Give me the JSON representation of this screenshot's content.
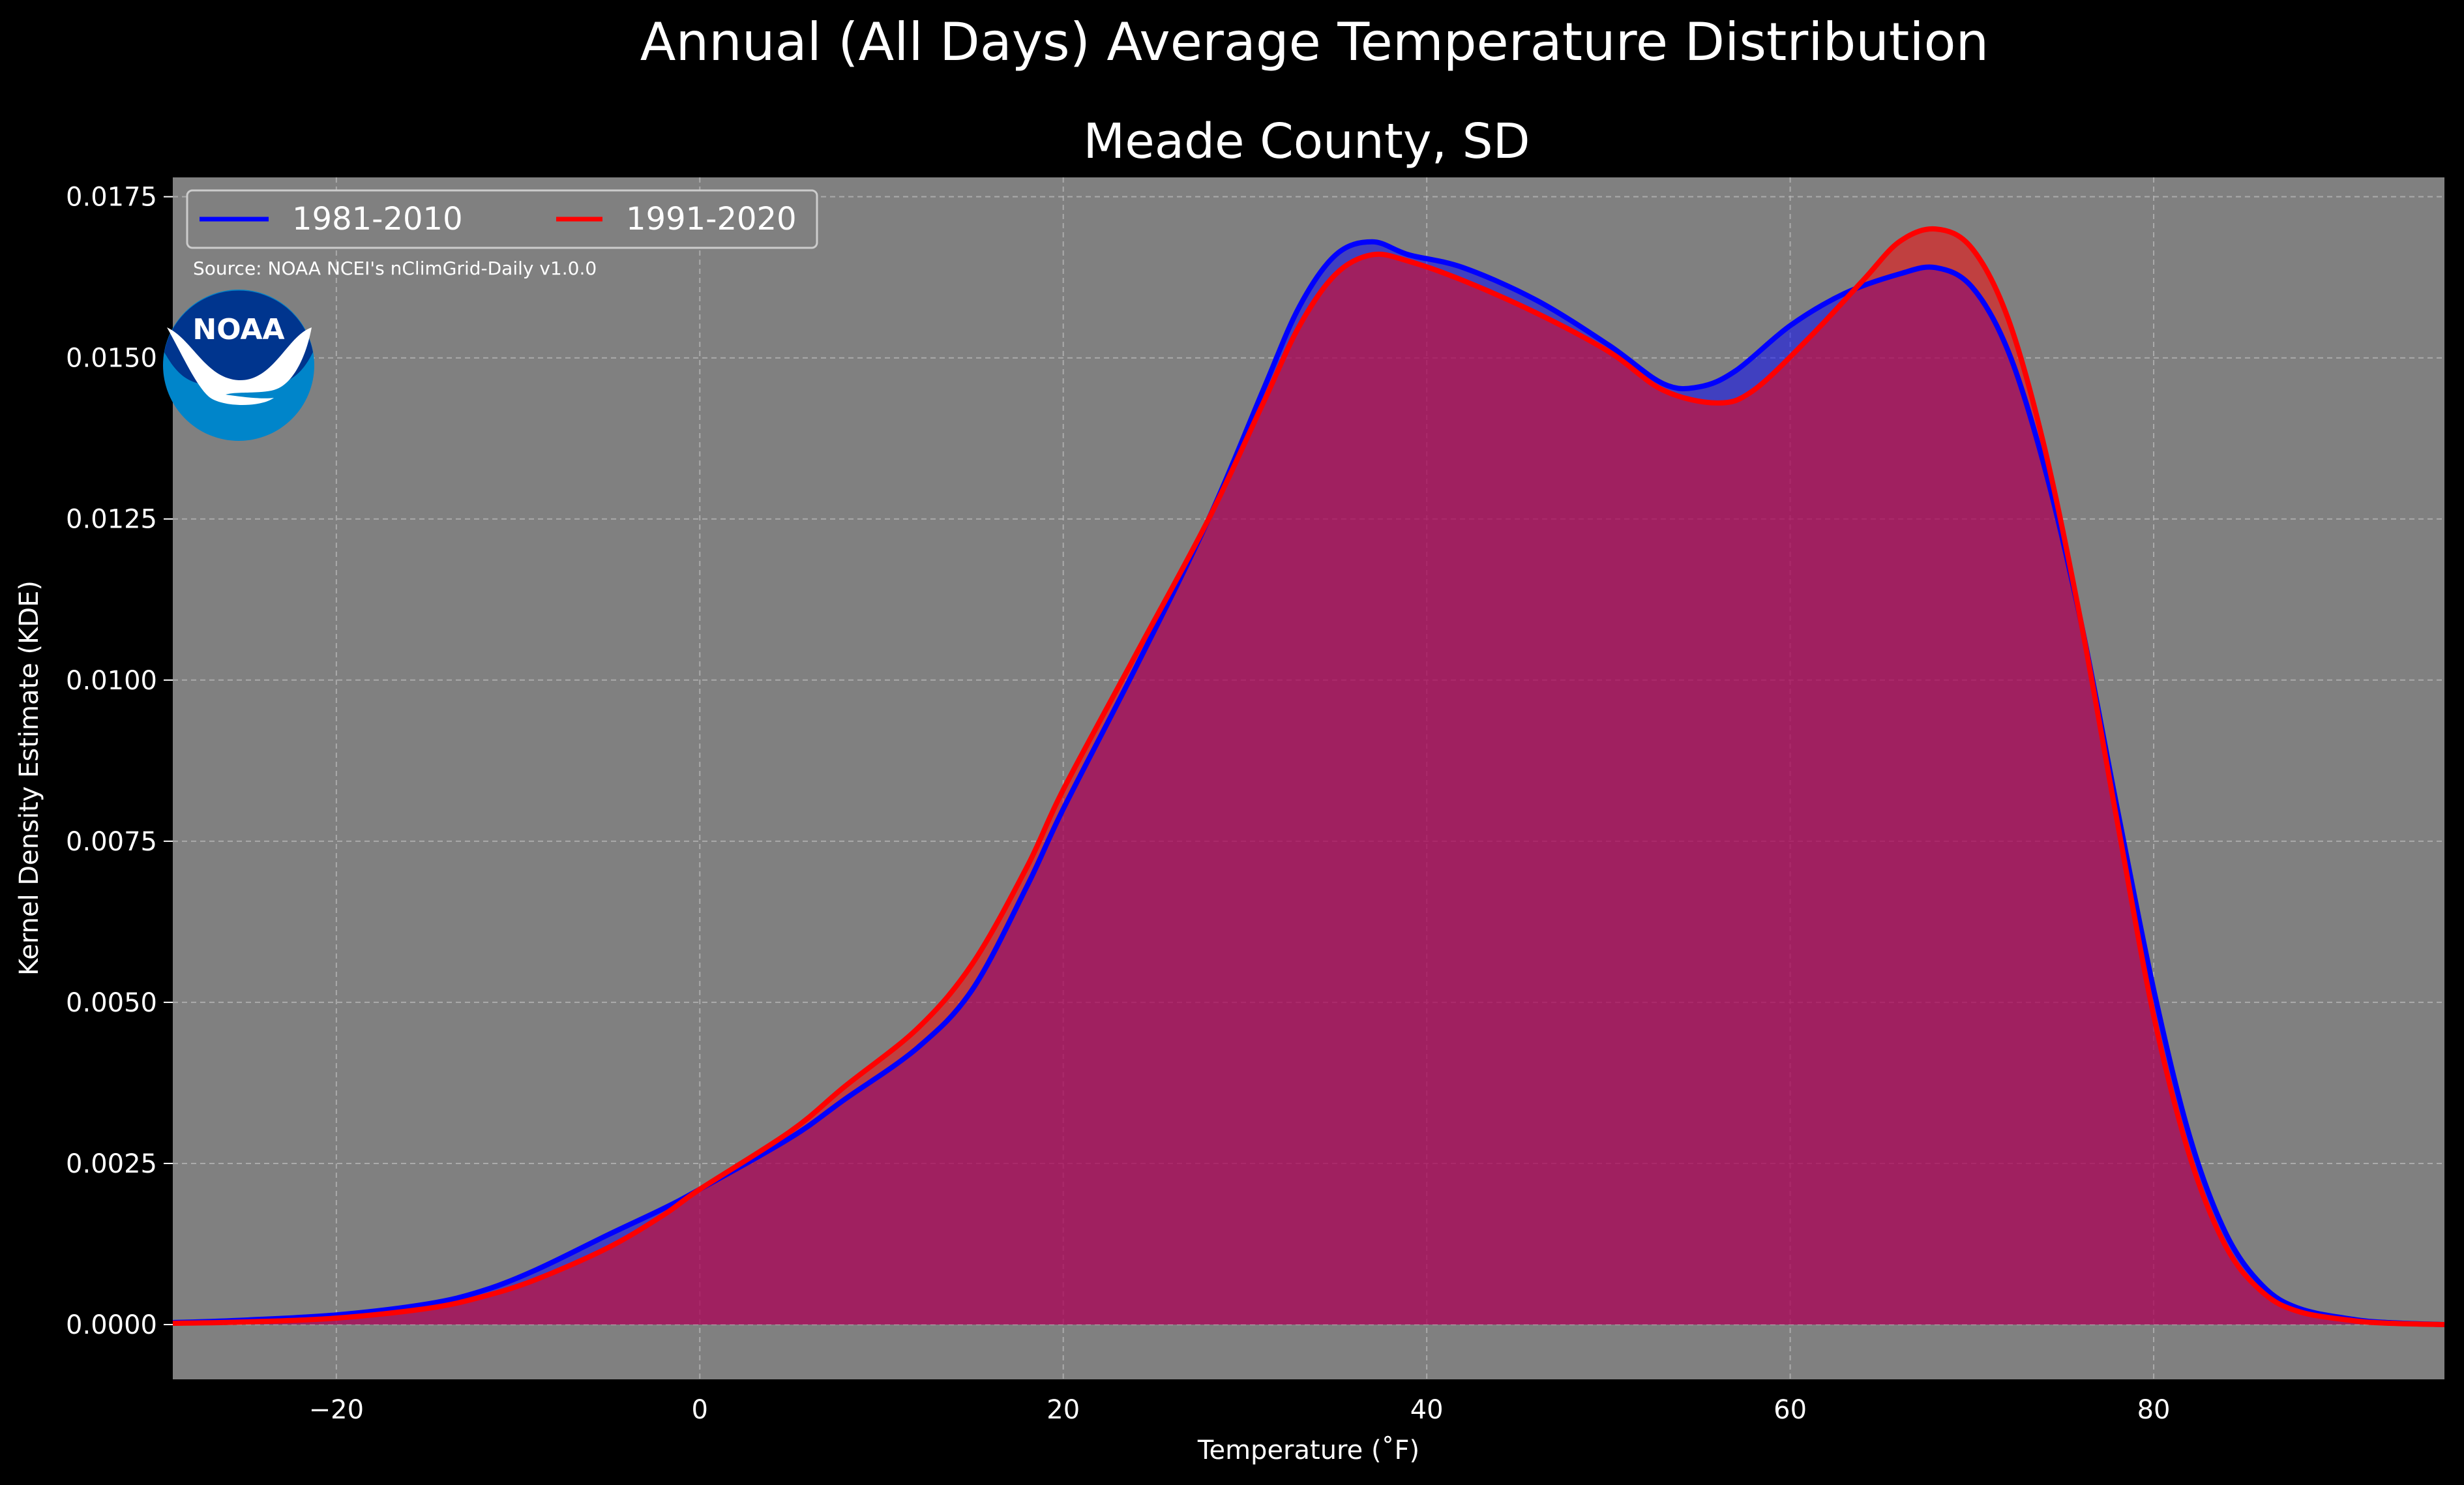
{
  "figure": {
    "suptitle": "Annual (All Days) Average Temperature Distribution",
    "subtitle": "Meade County, SD",
    "source": "Source: NOAA NCEI's nClimGrid-Daily v1.0.0",
    "logo_text": "NOAA",
    "background": "#000000",
    "plot_background": "#808080"
  },
  "chart_data": {
    "type": "area",
    "title": "Meade County, SD",
    "xlabel": "Temperature ($^\\circ$F)",
    "ylabel": "Kernel Density Estimate (KDE)",
    "xlabel_display": "Temperature (˚F)",
    "xlim": [
      -29,
      96
    ],
    "ylim": [
      -0.00085,
      0.0178
    ],
    "xticks": [
      -20,
      0,
      20,
      40,
      60,
      80
    ],
    "xtick_labels": [
      "−20",
      "0",
      "20",
      "40",
      "60",
      "80"
    ],
    "yticks": [
      0,
      0.0025,
      0.005,
      0.0075,
      0.01,
      0.0125,
      0.015,
      0.0175
    ],
    "ytick_labels": [
      "0.0000",
      "0.0025",
      "0.0050",
      "0.0075",
      "0.0100",
      "0.0125",
      "0.0150",
      "0.0175"
    ],
    "grid": true,
    "legend_position": "top-left",
    "series": [
      {
        "name": "1981-2010",
        "color": "#0000ff",
        "points": [
          [
            -29,
            3e-05
          ],
          [
            -25,
            7e-05
          ],
          [
            -20,
            0.00015
          ],
          [
            -15,
            0.00032
          ],
          [
            -12,
            0.00052
          ],
          [
            -9,
            0.00085
          ],
          [
            -5,
            0.0014
          ],
          [
            -2,
            0.0018
          ],
          [
            0,
            0.0021
          ],
          [
            5,
            0.0029
          ],
          [
            8,
            0.0035
          ],
          [
            12,
            0.0043
          ],
          [
            15,
            0.0052
          ],
          [
            18,
            0.0068
          ],
          [
            20,
            0.008
          ],
          [
            24,
            0.0102
          ],
          [
            28,
            0.0125
          ],
          [
            31,
            0.0145
          ],
          [
            33,
            0.0158
          ],
          [
            35,
            0.0166
          ],
          [
            37,
            0.0168
          ],
          [
            39,
            0.0166
          ],
          [
            42,
            0.0164
          ],
          [
            46,
            0.0159
          ],
          [
            50,
            0.0152
          ],
          [
            53,
            0.0146
          ],
          [
            55,
            0.01455
          ],
          [
            57,
            0.0148
          ],
          [
            60,
            0.0155
          ],
          [
            63,
            0.016
          ],
          [
            66,
            0.0163
          ],
          [
            68,
            0.0164
          ],
          [
            70,
            0.0161
          ],
          [
            72,
            0.0151
          ],
          [
            74,
            0.0133
          ],
          [
            76,
            0.0109
          ],
          [
            78,
            0.008
          ],
          [
            80,
            0.0052
          ],
          [
            82,
            0.0029
          ],
          [
            84,
            0.0014
          ],
          [
            86,
            0.0006
          ],
          [
            88,
            0.00025
          ],
          [
            91,
            8e-05
          ],
          [
            93,
            3e-05
          ],
          [
            96,
            0.0
          ]
        ]
      },
      {
        "name": "1991-2020",
        "color": "#ff0000",
        "points": [
          [
            -29,
            2e-05
          ],
          [
            -25,
            4e-05
          ],
          [
            -20,
            0.0001
          ],
          [
            -15,
            0.00025
          ],
          [
            -12,
            0.00043
          ],
          [
            -9,
            0.0007
          ],
          [
            -5,
            0.0012
          ],
          [
            -2,
            0.0017
          ],
          [
            0,
            0.0021
          ],
          [
            5,
            0.003
          ],
          [
            8,
            0.0037
          ],
          [
            12,
            0.0046
          ],
          [
            15,
            0.0056
          ],
          [
            18,
            0.0071
          ],
          [
            20,
            0.0083
          ],
          [
            24,
            0.0104
          ],
          [
            28,
            0.0125
          ],
          [
            31,
            0.0143
          ],
          [
            33,
            0.0155
          ],
          [
            35,
            0.0163
          ],
          [
            37,
            0.0166
          ],
          [
            39,
            0.0165
          ],
          [
            42,
            0.0162
          ],
          [
            46,
            0.0157
          ],
          [
            50,
            0.0151
          ],
          [
            53,
            0.0145
          ],
          [
            56,
            0.0143
          ],
          [
            58,
            0.0145
          ],
          [
            61,
            0.0153
          ],
          [
            64,
            0.0162
          ],
          [
            66,
            0.0168
          ],
          [
            68,
            0.017
          ],
          [
            70,
            0.0167
          ],
          [
            72,
            0.0156
          ],
          [
            74,
            0.0136
          ],
          [
            76,
            0.0109
          ],
          [
            78,
            0.0078
          ],
          [
            80,
            0.0048
          ],
          [
            82,
            0.0026
          ],
          [
            84,
            0.0012
          ],
          [
            86,
            0.0005
          ],
          [
            88,
            0.0002
          ],
          [
            91,
            6e-05
          ],
          [
            93,
            2e-05
          ],
          [
            96,
            0.0
          ]
        ]
      }
    ]
  }
}
